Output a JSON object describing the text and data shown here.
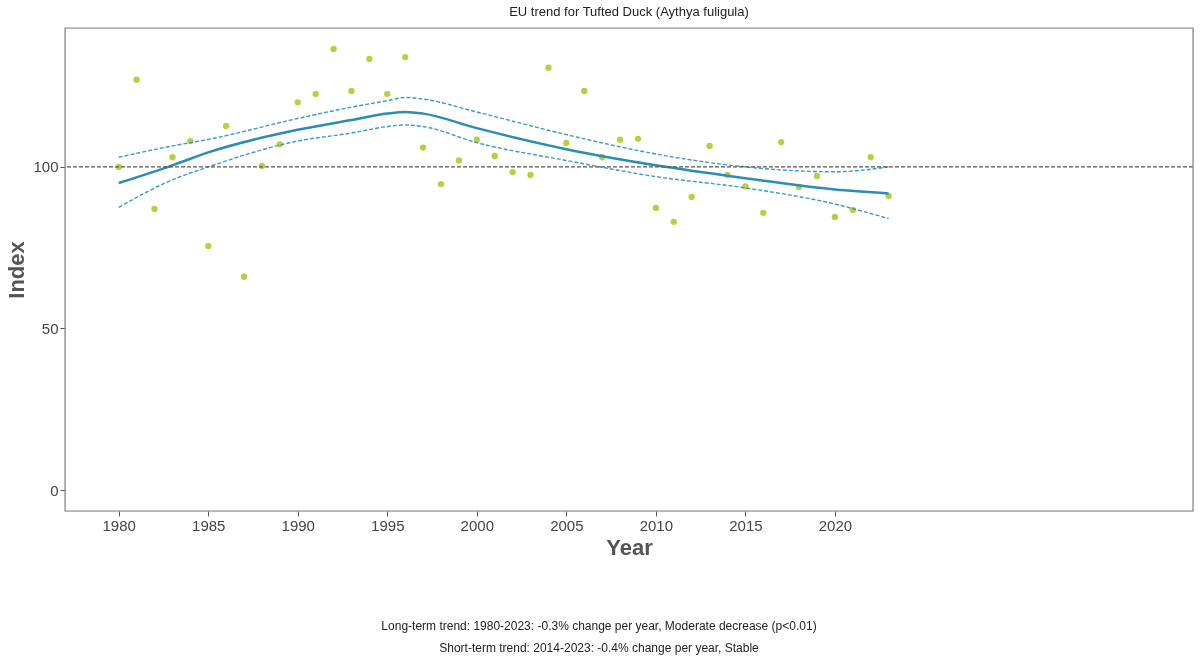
{
  "chart_data": {
    "type": "scatter",
    "title": "EU trend for Tufted Duck (Aythya fuligula)",
    "xlabel": "Year",
    "ylabel": "Index",
    "x": [
      1980,
      1981,
      1982,
      1983,
      1984,
      1985,
      1986,
      1987,
      1988,
      1989,
      1990,
      1991,
      1992,
      1993,
      1994,
      1995,
      1996,
      1997,
      1998,
      1999,
      2000,
      2001,
      2002,
      2003,
      2004,
      2005,
      2006,
      2007,
      2008,
      2009,
      2010,
      2011,
      2012,
      2013,
      2014,
      2015,
      2016,
      2017,
      2018,
      2019,
      2020,
      2021,
      2022,
      2023
    ],
    "series": [
      {
        "color": "#b8d040",
        "marker": "circle",
        "values": [
          100,
          127,
          87,
          103,
          108,
          75.5,
          112.7,
          66,
          100.3,
          107,
          120,
          122.6,
          136.5,
          123.5,
          133.4,
          122.6,
          134,
          106,
          94.7,
          102,
          108.4,
          103.4,
          98.4,
          97.5,
          130.7,
          107.4,
          123.5,
          103,
          108.4,
          108.7,
          87.3,
          83,
          90.7,
          106.5,
          97.5,
          94,
          85.8,
          107.7,
          93.8,
          97.2,
          84.5,
          86.7,
          103,
          91
        ]
      },
      {
        "type": "line",
        "color": "#2a8db3",
        "line_style": "solid",
        "x": [
          1980,
          1983,
          1985,
          1990,
          1993,
          1995,
          1996,
          1997,
          2000,
          2005,
          2010,
          2015,
          2020,
          2023
        ],
        "values": [
          95,
          100.5,
          104.5,
          111.5,
          114.5,
          116.5,
          117,
          116.5,
          112,
          105.5,
          100.5,
          96.5,
          93,
          91.8
        ]
      },
      {
        "type": "line",
        "color": "#3a9ac8",
        "line_style": "dashed",
        "x": [
          1980,
          1983,
          1985,
          1990,
          1993,
          1995,
          1996,
          1997,
          2000,
          2005,
          2010,
          2015,
          2020,
          2023
        ],
        "values": [
          87.5,
          96,
          100,
          108,
          110.5,
          112.5,
          113,
          112.5,
          107.5,
          102,
          97,
          93.5,
          88.5,
          84
        ]
      },
      {
        "type": "line",
        "color": "#3a9ac8",
        "line_style": "dashed",
        "x": [
          1980,
          1983,
          1985,
          1990,
          1993,
          1995,
          1996,
          1997,
          2000,
          2005,
          2010,
          2015,
          2020,
          2023
        ],
        "values": [
          103,
          106.5,
          108.5,
          115,
          118.5,
          120.5,
          121.5,
          121,
          117,
          110,
          104,
          100,
          98.5,
          100
        ]
      }
    ],
    "xlim": [
      1977,
      2040
    ],
    "ylim": [
      -6.5,
      143
    ],
    "xticks": [
      1980,
      1985,
      1990,
      1995,
      2000,
      2005,
      2010,
      2015,
      2020
    ],
    "yticks": [
      0,
      50,
      100
    ],
    "grid": false,
    "legend": false,
    "ref_lines": [
      {
        "axis": "y",
        "value": 100,
        "color": "#555555",
        "line_style": "dashed"
      }
    ],
    "annotations": [
      "Long-term trend: 1980-2023: -0.3% change per year, Moderate decrease (p<0.01)",
      "Short-term trend: 2014-2023: -0.4% change per year, Stable"
    ]
  }
}
